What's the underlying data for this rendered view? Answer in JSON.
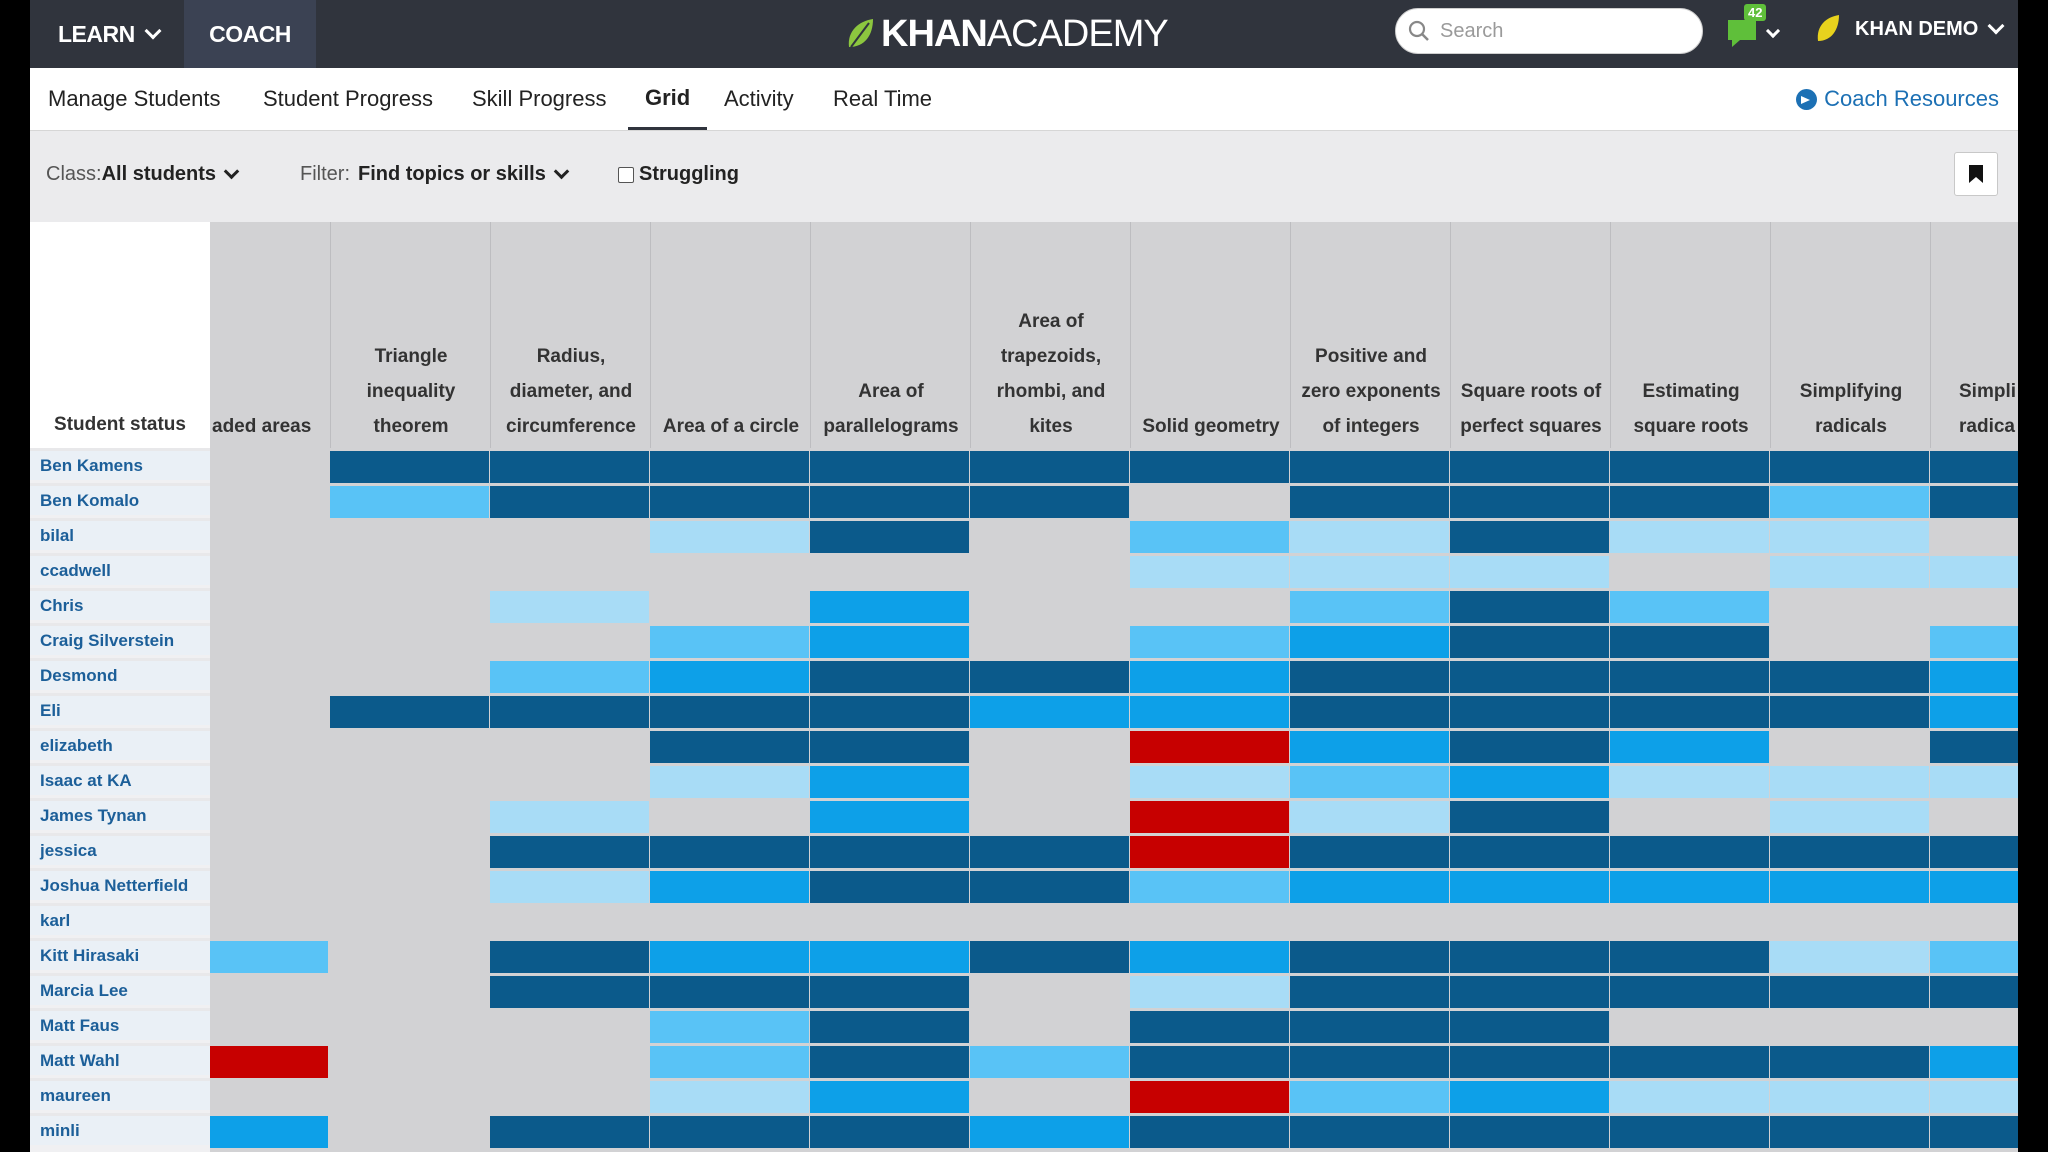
{
  "topbar": {
    "learn_label": "LEARN",
    "coach_label": "COACH",
    "logo_khan": "KHAN",
    "logo_academy": "ACADEMY",
    "search_placeholder": "Search",
    "notification_count": "42",
    "user_name": "KHAN DEMO"
  },
  "tabs": [
    "Manage Students",
    "Student Progress",
    "Skill Progress",
    "Grid",
    "Activity",
    "Real Time"
  ],
  "active_tab": "Grid",
  "coach_resources_label": "Coach Resources",
  "filters": {
    "class_label": "Class:",
    "class_value": "All students",
    "filter_label": "Filter:",
    "filter_value": "Find topics or skills",
    "struggling_label": "Struggling"
  },
  "grid": {
    "student_status_label": "Student status",
    "skills": [
      [
        "aded areas"
      ],
      [
        "Triangle",
        "inequality",
        "theorem"
      ],
      [
        "Radius,",
        "diameter, and",
        "circumference"
      ],
      [
        "Area of a circle"
      ],
      [
        "Area of",
        "parallelograms"
      ],
      [
        "Area of",
        "trapezoids,",
        "rhombi, and",
        "kites"
      ],
      [
        "Solid geometry"
      ],
      [
        "Positive and",
        "zero exponents",
        "of integers"
      ],
      [
        "Square roots of",
        "perfect squares"
      ],
      [
        "Estimating",
        "square roots"
      ],
      [
        "Simplifying",
        "radicals"
      ],
      [
        "Simpli",
        "radica"
      ]
    ],
    "students": [
      "Ben Kamens",
      "Ben Komalo",
      "bilal",
      "ccadwell",
      "Chris",
      "Craig Silverstein",
      "Desmond",
      "Eli",
      "elizabeth",
      "Isaac at KA",
      "James Tynan",
      "jessica",
      "Joshua Netterfield",
      "karl",
      "Kitt Hirasaki",
      "Marcia Lee",
      "Matt Faus",
      "Matt Wahl",
      "maureen",
      "minli"
    ],
    "legend_codes": {
      "0": "not started",
      "1": "practiced",
      "2": "level one",
      "3": "level two",
      "4": "mastered",
      "5": "struggling"
    },
    "colors": {
      "0": "#d2d2d4",
      "1": "#a8dcf6",
      "2": "#59c3f6",
      "3": "#0da0e8",
      "4": "#0b5a8b",
      "5": "#c70000"
    },
    "status_rows": [
      "044444444444",
      "024444044424",
      "000140214110",
      "000000111011",
      "001030024200",
      "000230234402",
      "002344344443",
      "044443344443",
      "000440534304",
      "000130123111",
      "001030514010",
      "004444544444",
      "001344233333",
      "000000000000",
      "204334344412",
      "004440144444",
      "000240444000",
      "500242444443",
      "000130523111",
      "304443444444"
    ]
  }
}
